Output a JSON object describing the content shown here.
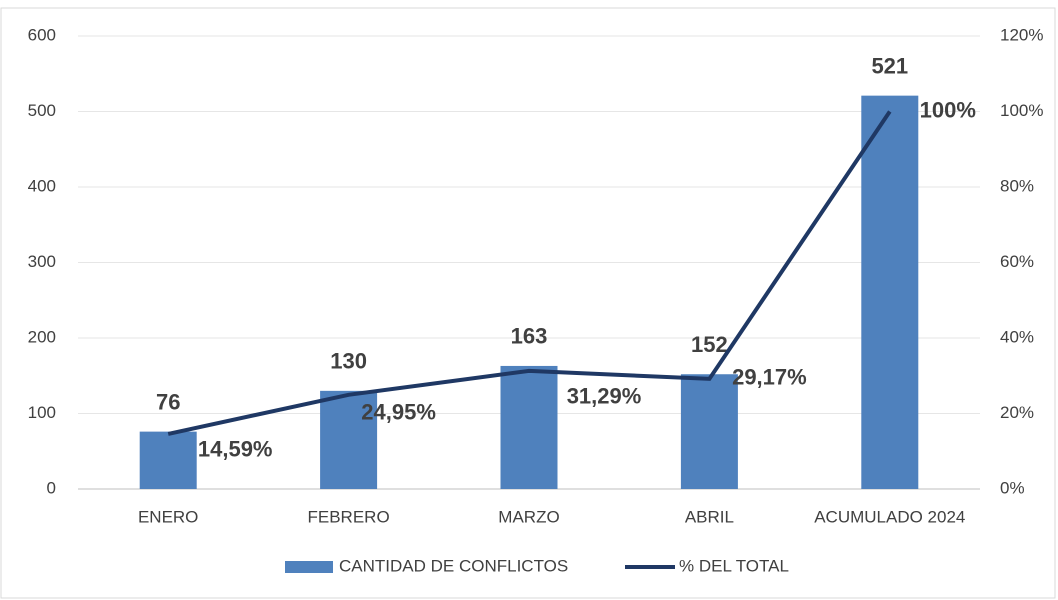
{
  "chart_data": {
    "type": "bar",
    "categories": [
      "ENERO",
      "FEBRERO",
      "MARZO",
      "ABRIL",
      "ACUMULADO 2024"
    ],
    "series": [
      {
        "name": "CANTIDAD DE CONFLICTOS",
        "type": "bar",
        "color": "#4f81bd",
        "values": [
          76,
          130,
          163,
          152,
          521
        ]
      },
      {
        "name": "% DEL TOTAL",
        "type": "line",
        "axis": "y2",
        "color": "#1f3864",
        "values": [
          14.59,
          24.95,
          31.29,
          29.17,
          100
        ],
        "value_labels": [
          "14,59%",
          "24,95%",
          "31,29%",
          "29,17%",
          "100%"
        ]
      }
    ],
    "ylim": [
      0,
      600
    ],
    "yticks": [
      0,
      100,
      200,
      300,
      400,
      500,
      600
    ],
    "y2lim": [
      0,
      120
    ],
    "y2ticks": [
      {
        "value": 0,
        "label": "0%"
      },
      {
        "value": 20,
        "label": "20%"
      },
      {
        "value": 40,
        "label": "40%"
      },
      {
        "value": 60,
        "label": "60%"
      },
      {
        "value": 80,
        "label": "80%"
      },
      {
        "value": 100,
        "label": "100%"
      },
      {
        "value": 120,
        "label": "120%"
      }
    ],
    "grid": true,
    "legend": "bottom"
  }
}
